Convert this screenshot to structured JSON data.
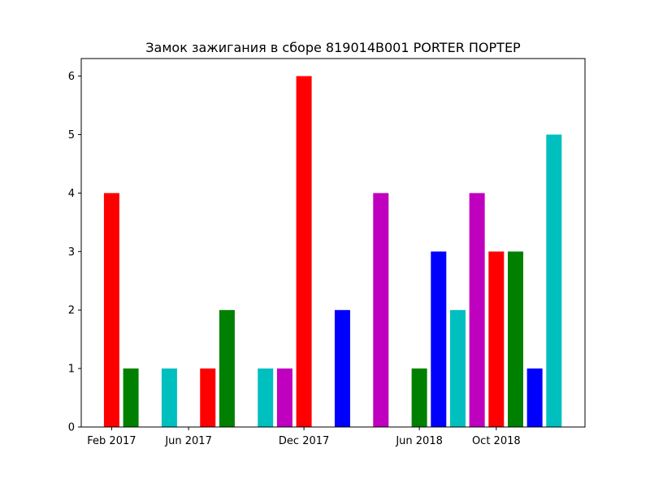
{
  "chart_data": {
    "type": "bar",
    "title": "Замок зажигания в сборе 819014B001 PORTER ПОРТЕР",
    "xlabel": "",
    "ylabel": "",
    "x_tick_labels": [
      "Feb 2017",
      "Jun 2017",
      "Dec 2017",
      "Jun 2018",
      "Oct 2018"
    ],
    "y_tick_labels": [
      "0",
      "1",
      "2",
      "3",
      "4",
      "5",
      "6"
    ],
    "ylim": [
      0,
      6.3
    ],
    "grid": false,
    "legend": "none",
    "color_cycle": [
      "#ff0000",
      "#008000",
      "#0000ff",
      "#00bfbf",
      "#bf00bf"
    ],
    "bars": [
      {
        "x": "Feb 2017",
        "value": 4,
        "color": "#ff0000"
      },
      {
        "x": "Mar 2017",
        "value": 1,
        "color": "#008000"
      },
      {
        "x": "Apr 2017",
        "value": 0,
        "color": "#0000ff"
      },
      {
        "x": "May 2017",
        "value": 1,
        "color": "#00bfbf"
      },
      {
        "x": "Jun 2017",
        "value": 0,
        "color": "#bf00bf"
      },
      {
        "x": "Jul 2017",
        "value": 1,
        "color": "#ff0000"
      },
      {
        "x": "Aug 2017",
        "value": 2,
        "color": "#008000"
      },
      {
        "x": "Sep 2017",
        "value": 0,
        "color": "#0000ff"
      },
      {
        "x": "Oct 2017",
        "value": 1,
        "color": "#00bfbf"
      },
      {
        "x": "Nov 2017",
        "value": 1,
        "color": "#bf00bf"
      },
      {
        "x": "Dec 2017",
        "value": 6,
        "color": "#ff0000"
      },
      {
        "x": "Jan 2018",
        "value": 0,
        "color": "#008000"
      },
      {
        "x": "Feb 2018",
        "value": 2,
        "color": "#0000ff"
      },
      {
        "x": "Mar 2018",
        "value": 0,
        "color": "#00bfbf"
      },
      {
        "x": "Apr 2018",
        "value": 4,
        "color": "#bf00bf"
      },
      {
        "x": "May 2018",
        "value": 0,
        "color": "#ff0000"
      },
      {
        "x": "Jun 2018",
        "value": 1,
        "color": "#008000"
      },
      {
        "x": "Jul 2018",
        "value": 3,
        "color": "#0000ff"
      },
      {
        "x": "Aug 2018",
        "value": 2,
        "color": "#00bfbf"
      },
      {
        "x": "Sep 2018",
        "value": 4,
        "color": "#bf00bf"
      },
      {
        "x": "Oct 2018",
        "value": 3,
        "color": "#ff0000"
      },
      {
        "x": "Nov 2018",
        "value": 3,
        "color": "#008000"
      },
      {
        "x": "Dec 2018",
        "value": 1,
        "color": "#0000ff"
      },
      {
        "x": "Jan 2019",
        "value": 5,
        "color": "#00bfbf"
      }
    ]
  }
}
